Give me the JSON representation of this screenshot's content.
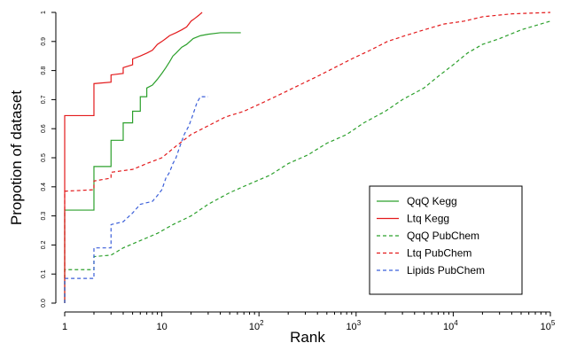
{
  "chart_data": {
    "type": "line",
    "xlabel": "Rank",
    "ylabel": "Propotion of dataset",
    "x_scale": "log10",
    "xlim": [
      1,
      100000
    ],
    "ylim": [
      0,
      1
    ],
    "x_ticks": [
      {
        "value": 1,
        "label": "1"
      },
      {
        "value": 10,
        "label": "10"
      },
      {
        "value": 100,
        "base": "10",
        "exp": "2"
      },
      {
        "value": 1000,
        "base": "10",
        "exp": "3"
      },
      {
        "value": 10000,
        "base": "10",
        "exp": "4"
      },
      {
        "value": 100000,
        "base": "10",
        "exp": "5"
      }
    ],
    "y_ticks": [
      {
        "value": 0.0,
        "label": "0.0"
      },
      {
        "value": 0.1,
        "label": "0.1"
      },
      {
        "value": 0.2,
        "label": "0.2"
      },
      {
        "value": 0.3,
        "label": "0.3"
      },
      {
        "value": 0.4,
        "label": "0.4"
      },
      {
        "value": 0.5,
        "label": "0.5"
      },
      {
        "value": 0.6,
        "label": "0.6"
      },
      {
        "value": 0.7,
        "label": "0.7"
      },
      {
        "value": 0.8,
        "label": "0.8"
      },
      {
        "value": 0.9,
        "label": "0.9"
      },
      {
        "value": 1.0,
        "label": "1"
      }
    ],
    "legend_position": "bottom-right",
    "grid": false,
    "series": [
      {
        "name": "QqQ Kegg",
        "color": "#2ca02c",
        "dash": "solid",
        "points": [
          [
            1,
            0.0
          ],
          [
            1,
            0.32
          ],
          [
            2,
            0.32
          ],
          [
            2,
            0.47
          ],
          [
            3,
            0.47
          ],
          [
            3,
            0.56
          ],
          [
            4,
            0.56
          ],
          [
            4,
            0.62
          ],
          [
            5,
            0.62
          ],
          [
            5,
            0.66
          ],
          [
            6,
            0.66
          ],
          [
            6,
            0.71
          ],
          [
            7,
            0.71
          ],
          [
            7,
            0.74
          ],
          [
            8,
            0.75
          ],
          [
            9,
            0.77
          ],
          [
            10,
            0.79
          ],
          [
            11,
            0.81
          ],
          [
            12,
            0.83
          ],
          [
            13,
            0.85
          ],
          [
            14,
            0.86
          ],
          [
            16,
            0.88
          ],
          [
            18,
            0.89
          ],
          [
            21,
            0.91
          ],
          [
            25,
            0.92
          ],
          [
            30,
            0.925
          ],
          [
            40,
            0.93
          ],
          [
            65,
            0.93
          ]
        ]
      },
      {
        "name": "Ltq Kegg",
        "color": "#e31a1c",
        "dash": "solid",
        "points": [
          [
            1,
            0.0
          ],
          [
            1,
            0.645
          ],
          [
            2,
            0.645
          ],
          [
            2,
            0.755
          ],
          [
            3,
            0.76
          ],
          [
            3,
            0.785
          ],
          [
            4,
            0.79
          ],
          [
            4,
            0.81
          ],
          [
            5,
            0.82
          ],
          [
            5,
            0.84
          ],
          [
            6,
            0.85
          ],
          [
            7,
            0.86
          ],
          [
            8,
            0.87
          ],
          [
            9,
            0.89
          ],
          [
            10,
            0.9
          ],
          [
            11,
            0.91
          ],
          [
            12,
            0.92
          ],
          [
            14,
            0.93
          ],
          [
            16,
            0.94
          ],
          [
            18,
            0.95
          ],
          [
            20,
            0.97
          ],
          [
            22,
            0.98
          ],
          [
            24,
            0.99
          ],
          [
            26,
            1.0
          ]
        ]
      },
      {
        "name": "QqQ PubChem",
        "color": "#2ca02c",
        "dash": "dashed",
        "points": [
          [
            1,
            0.0
          ],
          [
            1,
            0.115
          ],
          [
            2,
            0.115
          ],
          [
            2,
            0.16
          ],
          [
            3,
            0.165
          ],
          [
            4,
            0.19
          ],
          [
            6,
            0.215
          ],
          [
            9,
            0.24
          ],
          [
            13,
            0.27
          ],
          [
            20,
            0.3
          ],
          [
            30,
            0.34
          ],
          [
            50,
            0.38
          ],
          [
            80,
            0.41
          ],
          [
            130,
            0.44
          ],
          [
            200,
            0.48
          ],
          [
            320,
            0.51
          ],
          [
            500,
            0.55
          ],
          [
            800,
            0.58
          ],
          [
            1200,
            0.62
          ],
          [
            2000,
            0.66
          ],
          [
            3000,
            0.7
          ],
          [
            5000,
            0.74
          ],
          [
            7000,
            0.78
          ],
          [
            10000,
            0.82
          ],
          [
            14000,
            0.86
          ],
          [
            20000,
            0.89
          ],
          [
            30000,
            0.91
          ],
          [
            50000,
            0.94
          ],
          [
            100000,
            0.97
          ]
        ]
      },
      {
        "name": "Ltq PubChem",
        "color": "#e31a1c",
        "dash": "dashed",
        "points": [
          [
            1,
            0.0
          ],
          [
            1,
            0.385
          ],
          [
            2,
            0.39
          ],
          [
            2,
            0.42
          ],
          [
            3,
            0.43
          ],
          [
            3,
            0.45
          ],
          [
            5,
            0.46
          ],
          [
            7,
            0.48
          ],
          [
            10,
            0.5
          ],
          [
            14,
            0.54
          ],
          [
            20,
            0.58
          ],
          [
            30,
            0.61
          ],
          [
            45,
            0.64
          ],
          [
            70,
            0.66
          ],
          [
            110,
            0.69
          ],
          [
            170,
            0.72
          ],
          [
            260,
            0.75
          ],
          [
            400,
            0.78
          ],
          [
            600,
            0.81
          ],
          [
            900,
            0.84
          ],
          [
            1400,
            0.87
          ],
          [
            2100,
            0.9
          ],
          [
            3200,
            0.92
          ],
          [
            5000,
            0.94
          ],
          [
            8000,
            0.96
          ],
          [
            13000,
            0.97
          ],
          [
            20000,
            0.985
          ],
          [
            40000,
            0.995
          ],
          [
            100000,
            1.0
          ]
        ]
      },
      {
        "name": "Lipids PubChem",
        "color": "#3b5fd9",
        "dash": "dashed",
        "points": [
          [
            1,
            0.0
          ],
          [
            1,
            0.085
          ],
          [
            2,
            0.085
          ],
          [
            2,
            0.19
          ],
          [
            3,
            0.19
          ],
          [
            3,
            0.27
          ],
          [
            4,
            0.28
          ],
          [
            5,
            0.31
          ],
          [
            6,
            0.34
          ],
          [
            8,
            0.35
          ],
          [
            9,
            0.37
          ],
          [
            10,
            0.39
          ],
          [
            11,
            0.43
          ],
          [
            12,
            0.45
          ],
          [
            13,
            0.48
          ],
          [
            14,
            0.5
          ],
          [
            15,
            0.53
          ],
          [
            17,
            0.58
          ],
          [
            19,
            0.61
          ],
          [
            21,
            0.65
          ],
          [
            23,
            0.69
          ],
          [
            25,
            0.71
          ],
          [
            30,
            0.71
          ]
        ]
      }
    ]
  }
}
